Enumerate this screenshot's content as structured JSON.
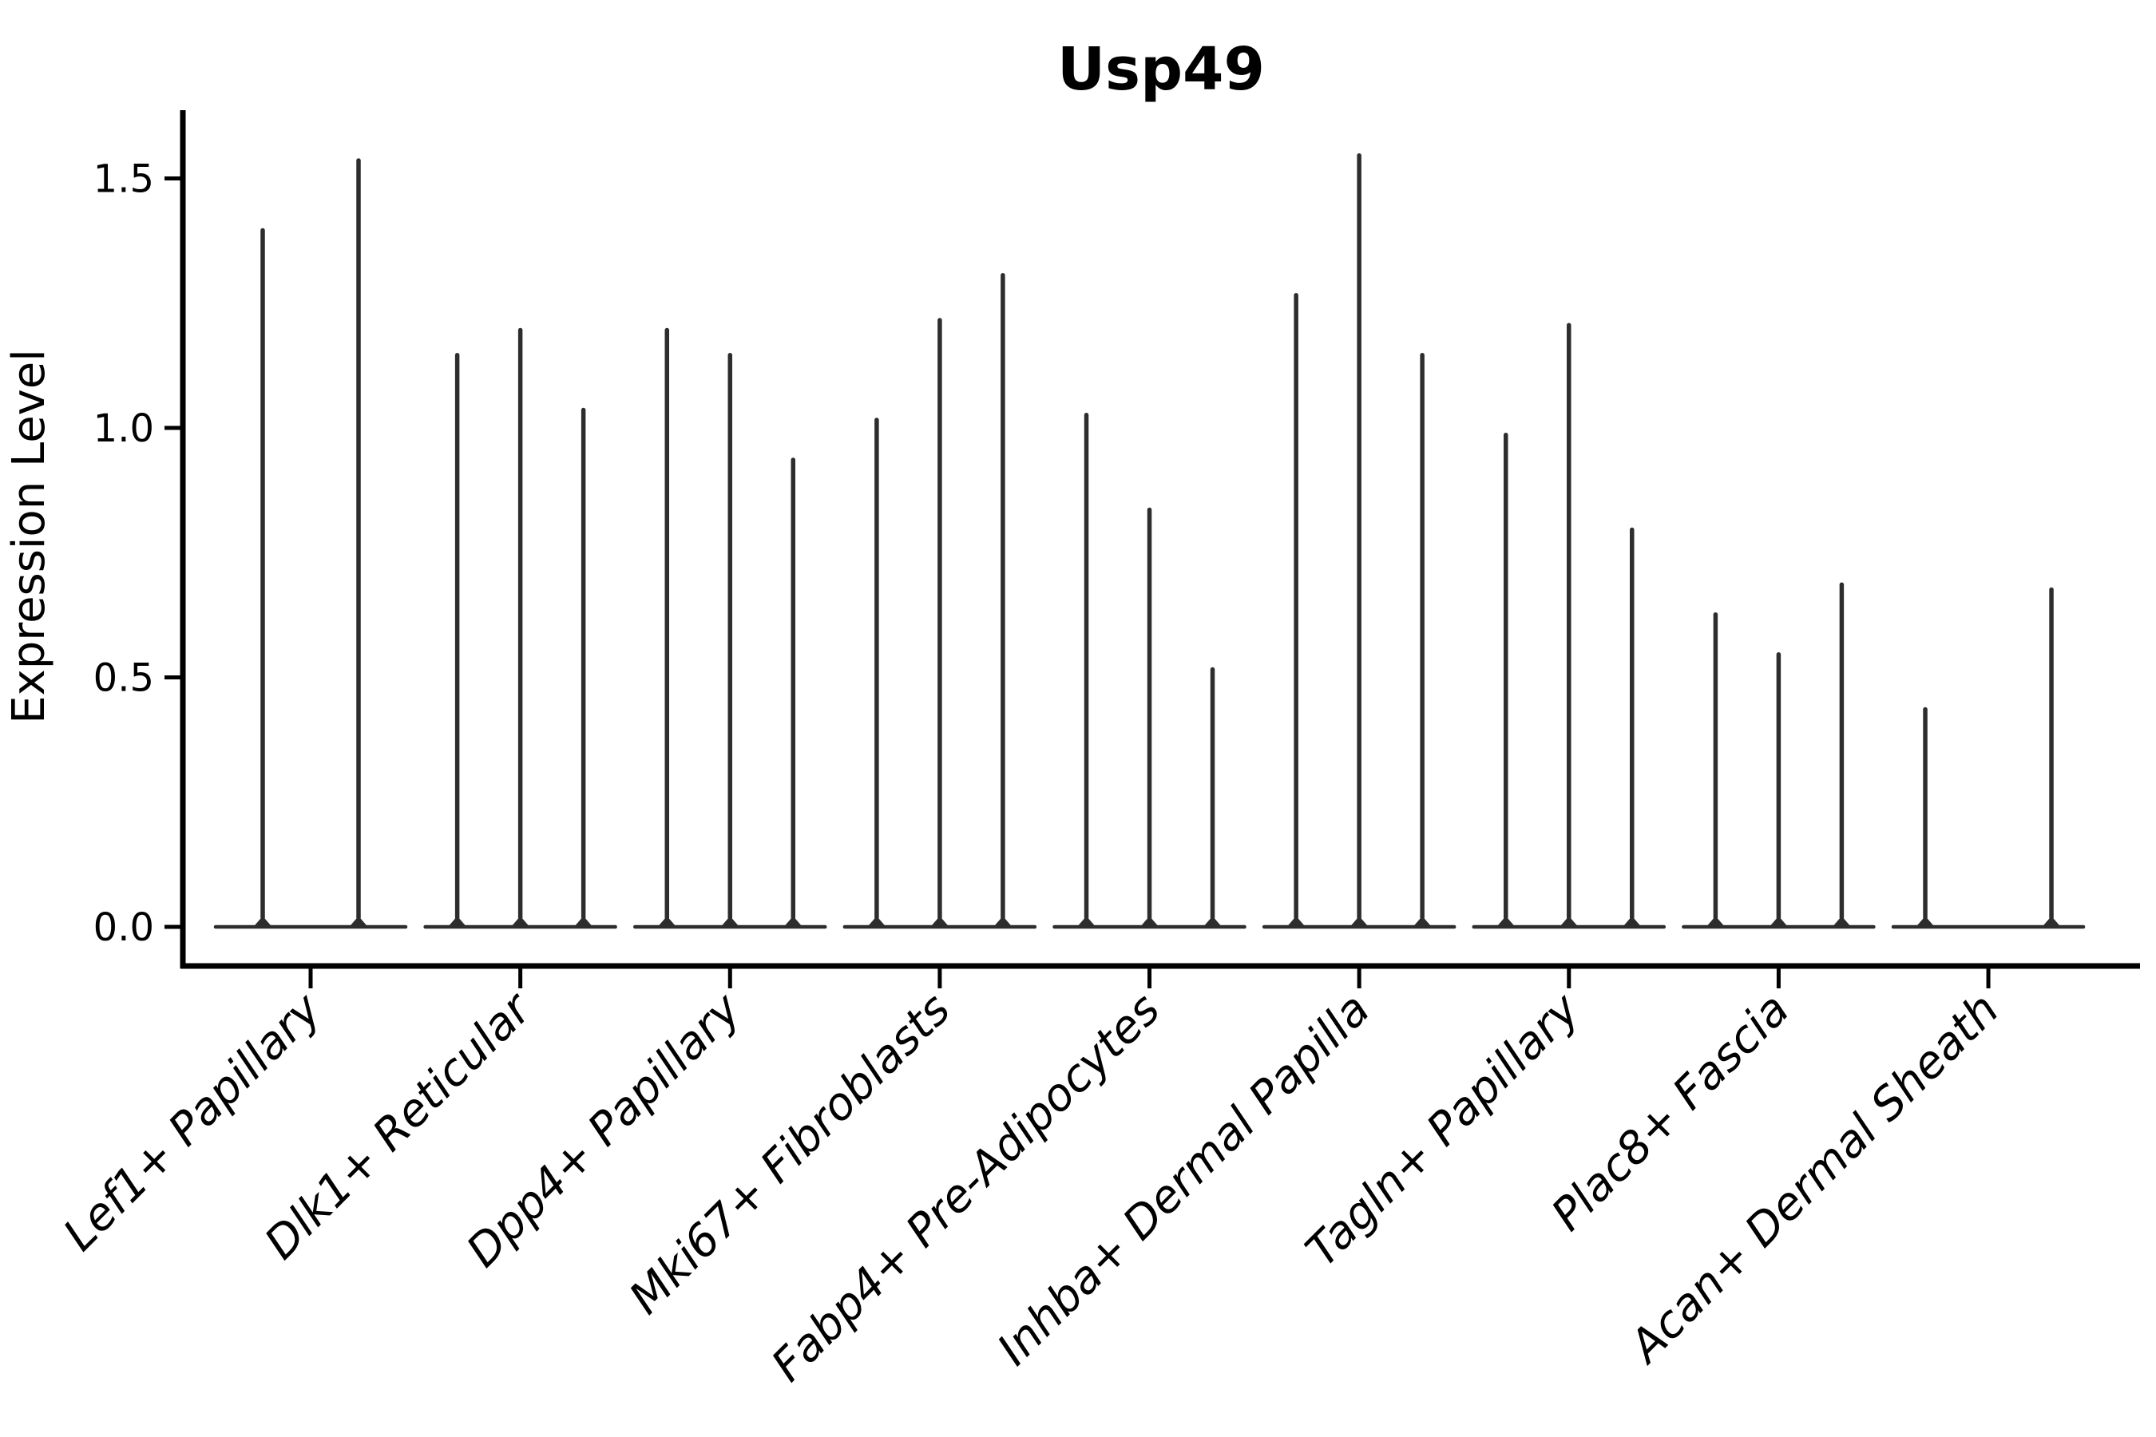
{
  "title": "Usp49",
  "chart_data": {
    "type": "violin",
    "title": "Usp49",
    "subtitle": "",
    "xlabel": "",
    "ylabel": "Expression Level",
    "ytick_labels": [
      "0.0",
      "0.5",
      "1.0",
      "1.5"
    ],
    "yticks": [
      0.0,
      0.5,
      1.0,
      1.5
    ],
    "ylim": [
      -0.08,
      1.64
    ],
    "grid": "off",
    "legend": "none",
    "style_note": "sparse single-cell expression violins: each violin renders as a flat base at 0 plus a thin spike up to its max value; group 1 has 2 violins, group 9 middle violin is all-zero (no spike)",
    "categories": [
      "Lef1+ Papillary",
      "Dlk1+ Reticular",
      "Dpp4+ Papillary",
      "Mki67+ Fibroblasts",
      "Fabp4+ Pre-Adipocytes",
      "Inhba+ Dermal Papilla",
      "Tagln+ Papillary",
      "Plac8+ Fascia",
      "Acan+ Dermal Sheath"
    ],
    "series": [
      {
        "name": "Lef1+ Papillary",
        "violin_max_values": [
          1.4,
          1.54
        ]
      },
      {
        "name": "Dlk1+ Reticular",
        "violin_max_values": [
          1.15,
          1.2,
          1.04
        ]
      },
      {
        "name": "Dpp4+ Papillary",
        "violin_max_values": [
          1.2,
          1.15,
          0.94
        ]
      },
      {
        "name": "Mki67+ Fibroblasts",
        "violin_max_values": [
          1.02,
          1.22,
          1.31
        ]
      },
      {
        "name": "Fabp4+ Pre-Adipocytes",
        "violin_max_values": [
          1.03,
          0.84,
          0.52
        ]
      },
      {
        "name": "Inhba+ Dermal Papilla",
        "violin_max_values": [
          1.27,
          1.55,
          1.15
        ]
      },
      {
        "name": "Tagln+ Papillary",
        "violin_max_values": [
          0.99,
          1.21,
          0.8
        ]
      },
      {
        "name": "Plac8+ Fascia",
        "violin_max_values": [
          0.63,
          0.55,
          0.69
        ]
      },
      {
        "name": "Acan+ Dermal Sheath",
        "violin_max_values": [
          0.44,
          0.0,
          0.68
        ]
      }
    ]
  }
}
